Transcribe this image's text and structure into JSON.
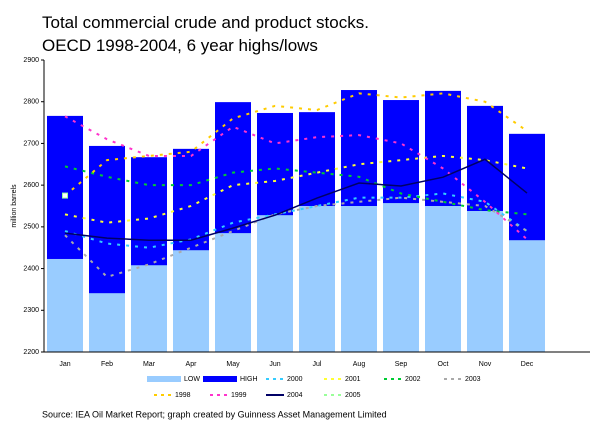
{
  "chart_data": {
    "type": "bar",
    "title": "Total commercial crude and product stocks.",
    "subtitle": "OECD 1998-2004, 6 year highs/lows",
    "y_label": "million barrels",
    "source": "Source: IEA Oil Market Report; graph created by Guinness Asset Management Limited",
    "categories": [
      "Jan",
      "Feb",
      "Mar",
      "Apr",
      "May",
      "Jun",
      "Jul",
      "Aug",
      "Sep",
      "Oct",
      "Nov",
      "Dec"
    ],
    "ylim": [
      2200,
      2900
    ],
    "yticks": [
      2200,
      2300,
      2400,
      2500,
      2600,
      2700,
      2800,
      2900
    ],
    "series": [
      {
        "name": "LOW",
        "type": "bar",
        "color": "#99ccff",
        "values": [
          2423,
          2341,
          2408,
          2444,
          2485,
          2528,
          2550,
          2550,
          2557,
          2550,
          2538,
          2468
        ]
      },
      {
        "name": "HIGH",
        "type": "bar",
        "color": "#0000ff",
        "values": [
          2766,
          2694,
          2667,
          2687,
          2799,
          2773,
          2775,
          2828,
          2804,
          2826,
          2790,
          2723
        ]
      },
      {
        "name": "2000",
        "type": "line",
        "dashed": true,
        "color": "#33ccff",
        "values": [
          2490,
          2460,
          2450,
          2470,
          2510,
          2530,
          2550,
          2570,
          2570,
          2580,
          2560,
          2490
        ]
      },
      {
        "name": "2001",
        "type": "line",
        "dashed": true,
        "color": "#ffff33",
        "values": [
          2530,
          2510,
          2520,
          2550,
          2600,
          2610,
          2630,
          2650,
          2660,
          2670,
          2660,
          2640
        ]
      },
      {
        "name": "2002",
        "type": "line",
        "dashed": true,
        "color": "#00cc33",
        "values": [
          2645,
          2620,
          2600,
          2600,
          2630,
          2640,
          2630,
          2620,
          2580,
          2560,
          2540,
          2530
        ]
      },
      {
        "name": "2003",
        "type": "line",
        "dashed": true,
        "color": "#aaaaaa",
        "values": [
          2480,
          2380,
          2410,
          2450,
          2490,
          2530,
          2550,
          2560,
          2570,
          2560,
          2550,
          2490
        ]
      },
      {
        "name": "1998",
        "type": "line",
        "dashed": true,
        "color": "#ffcc00",
        "values": [
          2575,
          2660,
          2670,
          2680,
          2760,
          2790,
          2780,
          2820,
          2810,
          2820,
          2800,
          2730
        ]
      },
      {
        "name": "1999",
        "type": "line",
        "dashed": true,
        "color": "#ff33cc",
        "values": [
          2765,
          2710,
          2670,
          2670,
          2740,
          2700,
          2715,
          2720,
          2700,
          2640,
          2560,
          2470
        ]
      },
      {
        "name": "2004",
        "type": "line",
        "dashed": false,
        "color": "#000066",
        "values": [
          2485,
          2473,
          2468,
          2468,
          2497,
          2528,
          2569,
          2605,
          2598,
          2619,
          2662,
          2581
        ]
      },
      {
        "name": "2005",
        "type": "line",
        "dashed": true,
        "color": "#99ff99",
        "values": [
          2575,
          null,
          null,
          null,
          null,
          null,
          null,
          null,
          null,
          null,
          null,
          null
        ]
      }
    ]
  }
}
